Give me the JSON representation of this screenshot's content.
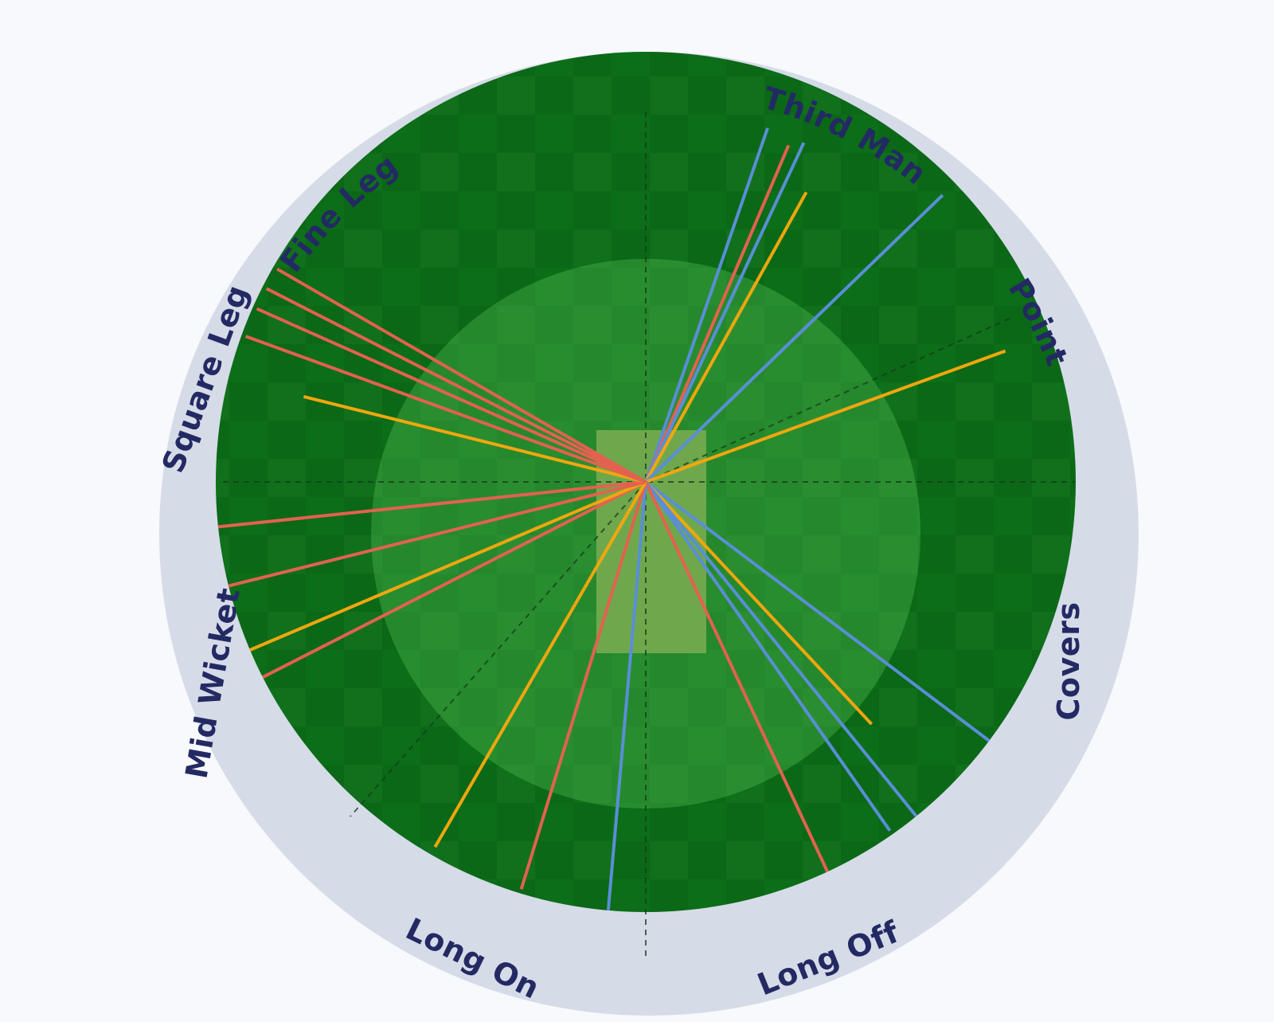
{
  "colors": {
    "background": "#f7f9fc",
    "boundary_ring": "#d6dbe8",
    "outfield": "#0c6e18",
    "infield": "#2a8f31",
    "pitch": "#6fa84c",
    "label": "#232a63",
    "divider": "#163b1b",
    "shot_blue": "#5a8ed6",
    "shot_red": "#e2624f",
    "shot_orange": "#f2a60f"
  },
  "zones": [
    {
      "id": "fine-leg",
      "label": "Fine Leg"
    },
    {
      "id": "third-man",
      "label": "Third Man"
    },
    {
      "id": "point",
      "label": "Point"
    },
    {
      "id": "covers",
      "label": "Covers"
    },
    {
      "id": "long-off",
      "label": "Long Off"
    },
    {
      "id": "long-on",
      "label": "Long On"
    },
    {
      "id": "mid-wicket",
      "label": "Mid Wicket"
    },
    {
      "id": "square-leg",
      "label": "Square Leg"
    }
  ],
  "shots": [
    {
      "color": "blue",
      "angle": 19,
      "length": 0.87
    },
    {
      "color": "red",
      "angle": 23,
      "length": 0.85
    },
    {
      "color": "blue",
      "angle": 25,
      "length": 0.87
    },
    {
      "color": "orange",
      "angle": 29,
      "length": 0.77
    },
    {
      "color": "blue",
      "angle": 46,
      "length": 0.96
    },
    {
      "color": "orange",
      "angle": 70,
      "length": 0.89
    },
    {
      "color": "blue",
      "angle": 127,
      "length": 1.0
    },
    {
      "color": "orange",
      "angle": 137,
      "length": 0.77
    },
    {
      "color": "blue",
      "angle": 141,
      "length": 1.0
    },
    {
      "color": "blue",
      "angle": 145,
      "length": 0.99
    },
    {
      "color": "red",
      "angle": 155,
      "length": 1.0
    },
    {
      "color": "blue",
      "angle": 185,
      "length": 1.0
    },
    {
      "color": "red",
      "angle": 197,
      "length": 0.99
    },
    {
      "color": "orange",
      "angle": 210,
      "length": 0.98
    },
    {
      "color": "red",
      "angle": 243,
      "length": 1.0
    },
    {
      "color": "orange",
      "angle": 247,
      "length": 1.0
    },
    {
      "color": "red",
      "angle": 256,
      "length": 1.0
    },
    {
      "color": "red",
      "angle": 264,
      "length": 1.0
    },
    {
      "color": "orange",
      "angle": 284,
      "length": 0.82
    },
    {
      "color": "red",
      "angle": 290,
      "length": 0.99
    },
    {
      "color": "red",
      "angle": 294,
      "length": 0.99
    },
    {
      "color": "red",
      "angle": 297,
      "length": 0.99
    },
    {
      "color": "red",
      "angle": 300,
      "length": 0.99
    }
  ]
}
